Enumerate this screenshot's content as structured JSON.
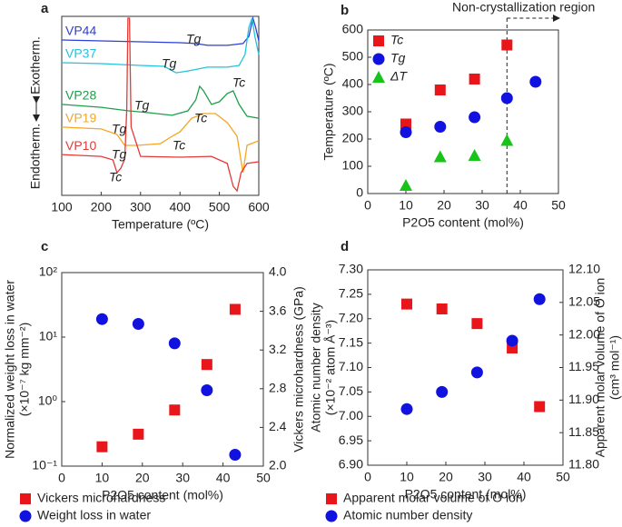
{
  "chart_data": [
    {
      "type": "line",
      "panel": "a",
      "xlabel": "Temperature (ºC)",
      "ylabel_low": "Endotherm.",
      "ylabel_high": "Exotherm.",
      "xlim": [
        100,
        600
      ],
      "xticks": [
        100,
        200,
        300,
        400,
        500,
        600
      ],
      "ylim": [
        0,
        100
      ],
      "series": [
        {
          "name": "VP44",
          "color": "#2b3fd6",
          "x": [
            100,
            200,
            300,
            400,
            440,
            470,
            520,
            560,
            575,
            585,
            592,
            600
          ],
          "values": [
            86.8,
            86.3,
            85.8,
            85.3,
            84.8,
            83.8,
            83.8,
            84.8,
            88.8,
            99,
            93.9,
            86.3
          ]
        },
        {
          "name": "VP37",
          "color": "#22c3dc",
          "x": [
            100,
            200,
            300,
            360,
            390,
            420,
            470,
            520,
            550,
            565,
            575,
            583,
            590,
            600
          ],
          "values": [
            74.1,
            73.6,
            72.6,
            72.1,
            68.5,
            69.5,
            71.6,
            71.6,
            72.6,
            78.7,
            93.9,
            99,
            88.8,
            78.7
          ]
        },
        {
          "name": "VP28",
          "color": "#1e9e4a",
          "x": [
            100,
            200,
            270,
            320,
            380,
            420,
            440,
            450,
            460,
            480,
            500,
            520,
            535,
            550,
            570,
            600
          ],
          "values": [
            50.8,
            49.2,
            47.2,
            46.2,
            44.7,
            47.2,
            53.3,
            60.9,
            58.4,
            50.8,
            52.3,
            56.9,
            58.4,
            50.8,
            44.2,
            43.1
          ]
        },
        {
          "name": "VP19",
          "color": "#f5a623",
          "x": [
            100,
            200,
            240,
            260,
            290,
            350,
            380,
            400,
            430,
            460,
            490,
            520,
            545,
            560,
            570,
            600
          ],
          "values": [
            38.1,
            37.1,
            34,
            27.9,
            27.9,
            28.9,
            33,
            35.5,
            43.1,
            45.7,
            45.7,
            40.6,
            33,
            12.7,
            27.9,
            30.5
          ]
        },
        {
          "name": "VP10",
          "color": "#e53935",
          "x": [
            100,
            200,
            230,
            240,
            250,
            260,
            265,
            268,
            272,
            276,
            300,
            400,
            480,
            520,
            535,
            545,
            555,
            570,
            600
          ],
          "values": [
            22.8,
            21.8,
            19.8,
            12.7,
            15.2,
            20.3,
            48.2,
            99,
            99,
            38.1,
            21.8,
            21.3,
            21.8,
            17.8,
            5.1,
            2.5,
            12.7,
            17.8,
            18.8
          ]
        }
      ],
      "annotations": [
        "Tg",
        "Tg",
        "Tc",
        "Tg",
        "Tc",
        "Tg",
        "Tc",
        "Tg",
        "Tc"
      ]
    },
    {
      "type": "scatter",
      "panel": "b",
      "xlabel": "P2O5 content (mol%)",
      "ylabel": "Temperature (ºC)",
      "xlim": [
        0,
        50
      ],
      "xticks": [
        0,
        10,
        20,
        30,
        40,
        50
      ],
      "ylim": [
        0,
        600
      ],
      "yticks": [
        0,
        100,
        200,
        300,
        400,
        500,
        600
      ],
      "legend": "top-left",
      "vline": 36.5,
      "annotation": "Non-crystallization region",
      "series": [
        {
          "name": "Tc",
          "color": "#e8161b",
          "marker": "square",
          "x": [
            10,
            19,
            28,
            36.5
          ],
          "values": [
            255,
            380,
            420,
            545
          ]
        },
        {
          "name": "Tg",
          "color": "#1212e0",
          "marker": "circle",
          "x": [
            10,
            19,
            28,
            36.5,
            44
          ],
          "values": [
            225,
            245,
            280,
            350,
            410
          ]
        },
        {
          "name": "ΔT",
          "color": "#19c419",
          "marker": "triangle",
          "x": [
            10,
            19,
            28,
            36.5
          ],
          "values": [
            30,
            135,
            140,
            195
          ]
        }
      ]
    },
    {
      "type": "scatter",
      "panel": "c",
      "xlabel": "P2O5 content (mol%)",
      "ylabel": [
        "Normalized weight loss in water",
        "(×10⁻⁷ kg mm⁻²)"
      ],
      "y2label": [
        "Vickers microhardness (GPa)"
      ],
      "xlim": [
        0,
        50
      ],
      "xticks": [
        0,
        10,
        20,
        30,
        40,
        50
      ],
      "ylog": true,
      "ylim": [
        0.1,
        100
      ],
      "yticks": [
        {
          "value": 0.1,
          "label": "10⁻¹"
        },
        {
          "value": 1,
          "label": "10⁰"
        },
        {
          "value": 10,
          "label": "10¹"
        },
        {
          "value": 100,
          "label": "10²"
        }
      ],
      "y2lim": [
        2.0,
        4.0
      ],
      "y2ticks": [
        {
          "value": 2.0,
          "label": "2.0"
        },
        {
          "value": 2.4,
          "label": "2.4"
        },
        {
          "value": 2.8,
          "label": "2.8"
        },
        {
          "value": 3.2,
          "label": "3.2"
        },
        {
          "value": 3.6,
          "label": "3.6"
        },
        {
          "value": 4.0,
          "label": "4.0"
        }
      ],
      "legend": "below",
      "series": [
        {
          "name": "Vickers microhardness",
          "color": "#e8161b",
          "marker": "square",
          "axis": "y2",
          "x": [
            10,
            19,
            28,
            36,
            43
          ],
          "values": [
            2.2,
            2.33,
            2.58,
            3.05,
            3.62
          ]
        },
        {
          "name": "Weight loss in water",
          "color": "#1212e0",
          "marker": "circle",
          "x": [
            10,
            19,
            28,
            36,
            43
          ],
          "values": [
            19,
            16,
            8,
            1.5,
            0.15
          ]
        }
      ]
    },
    {
      "type": "scatter",
      "panel": "d",
      "xlabel": "P2O5 content (mol%)",
      "ylabel": [
        "Atomic number density",
        "(×10⁻² atom Å⁻³)"
      ],
      "y2label": [
        "Apparent molar volume of O ion",
        "(cm³ mol⁻¹)"
      ],
      "xlim": [
        0,
        50
      ],
      "xticks": [
        0,
        10,
        20,
        30,
        40,
        50
      ],
      "ylim": [
        6.9,
        7.3
      ],
      "yticks": [
        {
          "value": 6.9,
          "label": "6.90"
        },
        {
          "value": 6.95,
          "label": "6.95"
        },
        {
          "value": 7.0,
          "label": "7.00"
        },
        {
          "value": 7.05,
          "label": "7.05"
        },
        {
          "value": 7.1,
          "label": "7.10"
        },
        {
          "value": 7.15,
          "label": "7.15"
        },
        {
          "value": 7.2,
          "label": "7.20"
        },
        {
          "value": 7.25,
          "label": "7.25"
        },
        {
          "value": 7.3,
          "label": "7.30"
        }
      ],
      "y2lim": [
        11.8,
        12.1
      ],
      "y2ticks": [
        {
          "value": 11.8,
          "label": "11.80"
        },
        {
          "value": 11.85,
          "label": "11.85"
        },
        {
          "value": 11.9,
          "label": "11.90"
        },
        {
          "value": 11.95,
          "label": "11.95"
        },
        {
          "value": 12.0,
          "label": "12.00"
        },
        {
          "value": 12.05,
          "label": "12.05"
        },
        {
          "value": 12.1,
          "label": "12.10"
        }
      ],
      "legend": "below",
      "series": [
        {
          "name": "Apparent molar volume of O ion",
          "color": "#e8161b",
          "marker": "square",
          "axis": "y2",
          "x": [
            10,
            19,
            28,
            37,
            44
          ],
          "values": [
            12.0475,
            12.04,
            12.0175,
            11.98,
            11.89
          ]
        },
        {
          "name": "Atomic number density",
          "color": "#1212e0",
          "marker": "circle",
          "x": [
            10,
            19,
            28,
            37,
            44
          ],
          "values": [
            7.015,
            7.05,
            7.09,
            7.155,
            7.24
          ]
        }
      ]
    }
  ]
}
